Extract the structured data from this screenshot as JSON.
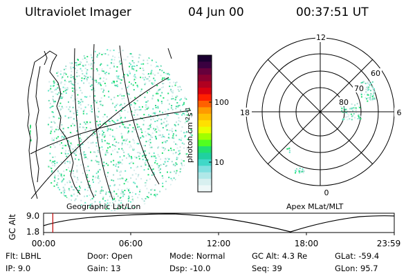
{
  "header": {
    "title": "Ultraviolet Imager",
    "date": "04 Jun 00",
    "time": "00:37:51 UT"
  },
  "geo_panel": {
    "label": "Geographic Lat/Lon"
  },
  "polar_panel": {
    "label": "Apex MLat/MLT",
    "mlt_labels": {
      "top": "12",
      "right": "6",
      "bottom": "0",
      "left": "18"
    },
    "lat_labels": [
      "60",
      "70",
      "80"
    ]
  },
  "colorbar": {
    "unit_main": "photon cm",
    "unit_exp1": "-2",
    "unit_s": "s",
    "unit_exp2": "-1",
    "tick_labels": [
      "100",
      "10"
    ],
    "colors": [
      "#1a0030",
      "#3a0040",
      "#66003c",
      "#8a0030",
      "#b00020",
      "#d80010",
      "#ff2000",
      "#ff6000",
      "#ff9a00",
      "#ffc000",
      "#ffe000",
      "#e8ff00",
      "#a0ff00",
      "#50ff20",
      "#20e070",
      "#20d0a0",
      "#40d8c8",
      "#80e0e0",
      "#b0e8e8",
      "#d8f0f0",
      "#eef8f8"
    ]
  },
  "timeline": {
    "ylabel": "GC Alt",
    "ytick_top": "9.0",
    "ytick_bottom": "1.8",
    "xticks": [
      "00:00",
      "06:00",
      "12:00",
      "18:00",
      "23:59"
    ],
    "marker_time_hours": 0.631,
    "marker_color": "#c00000"
  },
  "footer": {
    "filter": "Flt: LBHL",
    "ip": "IP:  9.0",
    "door": "Door: Open",
    "gain": "Gain: 13",
    "mode": "Mode: Normal",
    "dsp": "Dsp:   -10.0",
    "gc_alt": "GC Alt: 4.3 Re",
    "seq": "Seq: 39",
    "glat": "GLat: -59.4",
    "glon": "GLon:  95.7"
  }
}
